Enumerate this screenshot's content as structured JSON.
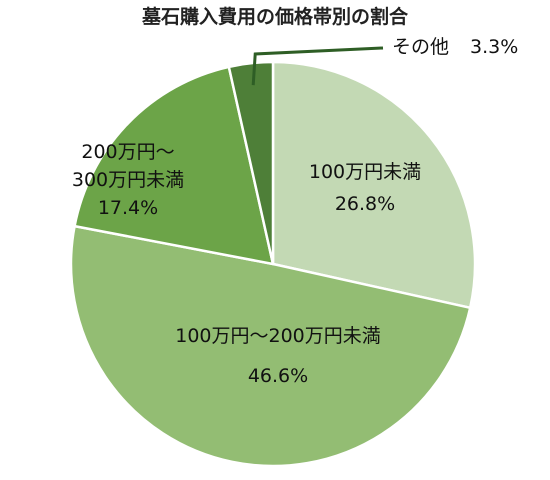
{
  "chart_data": {
    "type": "pie",
    "title": "墓石購入費用の価格帯別の割合",
    "start_angle_deg": 0,
    "direction": "clockwise",
    "slices": [
      {
        "label": [
          "100万円未満"
        ],
        "value": 26.8,
        "value_label": "26.8%",
        "color": "#c3d9b4"
      },
      {
        "label": [
          "100万円～200万円未満"
        ],
        "value": 46.6,
        "value_label": "46.6%",
        "color": "#93bd73"
      },
      {
        "label": [
          "200万円～",
          "300万円未満"
        ],
        "value": 17.4,
        "value_label": "17.4%",
        "color": "#6ca448"
      },
      {
        "label": [
          "その他"
        ],
        "value": 3.3,
        "value_label": "3.3%",
        "color": "#4e7f38"
      }
    ],
    "other_leader_color": "#2e5e25"
  }
}
